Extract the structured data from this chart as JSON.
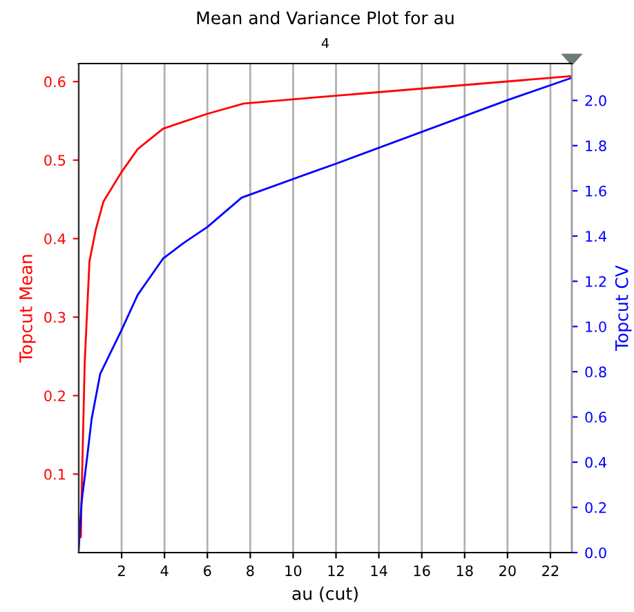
{
  "chart_data": {
    "type": "line",
    "title": "Mean and Variance Plot for au",
    "subtitle": "4",
    "xlabel": "au (cut)",
    "ylabel": "Topcut Mean",
    "y2label": "Topcut CV",
    "series": [
      {
        "color": "#ff0000",
        "x": [
          0.1,
          0.13,
          0.28,
          0.5,
          0.8,
          1.15,
          2.0,
          2.75,
          3.93,
          4.9,
          6.0,
          7.7,
          11.1,
          23
        ],
        "values": [
          0.02,
          0.068,
          0.243,
          0.371,
          0.412,
          0.447,
          0.485,
          0.514,
          0.54,
          0.549,
          0.559,
          0.572,
          0.58,
          0.607
        ]
      },
      {
        "color": "#0000ff",
        "axis": "y2",
        "x": [
          0.0,
          0.13,
          0.39,
          0.6,
          1.0,
          2.0,
          2.75,
          3.93,
          4.9,
          6.0,
          7.6,
          11.1,
          12.0,
          19.96,
          23
        ],
        "values": [
          0.014,
          0.22,
          0.42,
          0.59,
          0.79,
          0.985,
          1.14,
          1.3,
          1.37,
          1.44,
          1.57,
          1.69,
          1.72,
          2.0,
          2.1
        ]
      }
    ],
    "xlim": [
      0,
      23
    ],
    "xticks": [
      2,
      4,
      6,
      8,
      10,
      12,
      14,
      16,
      18,
      20,
      22
    ],
    "ylim": [
      0,
      0.623
    ],
    "yticks": [
      0.1,
      0.2,
      0.3,
      0.4,
      0.5,
      0.6
    ],
    "y2lim": [
      0,
      2.163
    ],
    "y2ticks": [
      {
        "value": 0,
        "label": "0.0"
      },
      {
        "value": 0.2,
        "label": "0.2"
      },
      {
        "value": 0.4,
        "label": "0.4"
      },
      {
        "value": 0.6,
        "label": "0.6"
      },
      {
        "value": 0.8,
        "label": "0.8"
      },
      {
        "value": 1.0,
        "label": "1.0"
      },
      {
        "value": 1.2,
        "label": "1.2"
      },
      {
        "value": 1.4,
        "label": "1.4"
      },
      {
        "value": 1.6,
        "label": "1.6"
      },
      {
        "value": 1.8,
        "label": "1.8"
      },
      {
        "value": 2.0,
        "label": "2.0"
      }
    ],
    "grid": "x",
    "legend": false
  }
}
